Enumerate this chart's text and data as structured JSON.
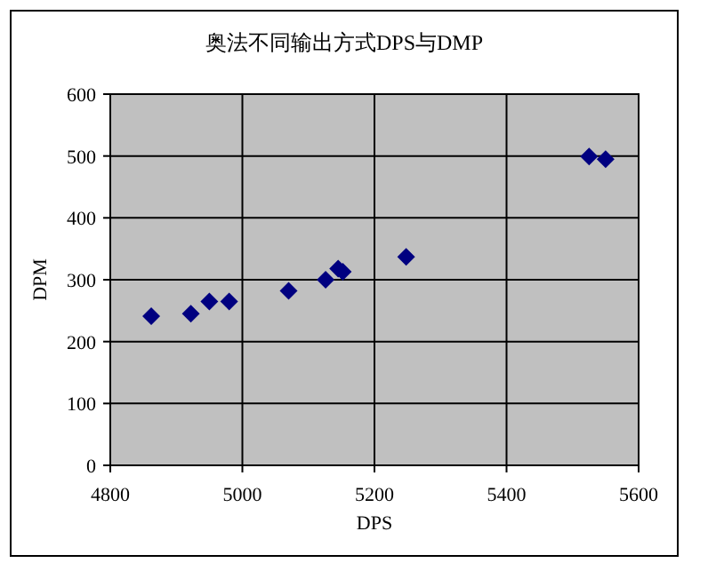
{
  "chart_data": {
    "type": "scatter",
    "title": "奥法不同输出方式DPS与DMP",
    "xlabel": "DPS",
    "ylabel": "DPM",
    "x": [
      4862,
      4922,
      4950,
      4980,
      5070,
      5126,
      5145,
      5152,
      5248,
      5525,
      5550
    ],
    "series": [
      {
        "color": "#000080",
        "values": [
          241,
          245,
          265,
          265,
          282,
          300,
          318,
          313,
          337,
          499,
          495
        ]
      }
    ],
    "xlim": [
      4800,
      5600
    ],
    "xticks": [
      4800,
      5000,
      5200,
      5400,
      5600
    ],
    "ylim": [
      0,
      600
    ],
    "yticks": [
      0,
      100,
      200,
      300,
      400,
      500,
      600
    ],
    "grid": true,
    "marker": "diamond"
  }
}
